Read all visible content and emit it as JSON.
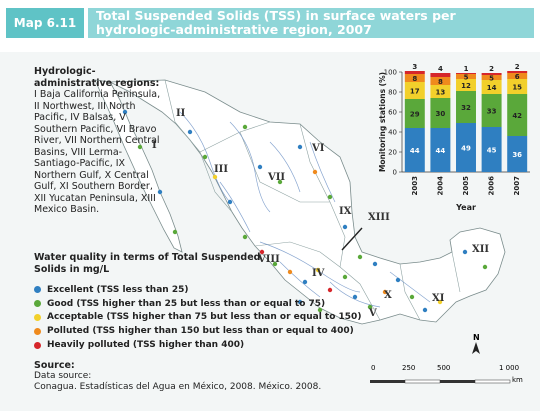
{
  "header": {
    "tag": "Map 6.11",
    "title": "Total Suspended Solids (TSS) in surface waters per hydrologic-administrative region, 2007"
  },
  "regions_legend": {
    "heading": "Hydrologic-administrative regions:",
    "text": " I Baja California Peninsula, II Northwest, III North Pacific, IV Balsas, V Southern Pacific, VI Bravo River, VII Northern Central Basins, VIII Lerma-Santiago-Pacific, IX Northern Gulf, X Central Gulf, XI Southern Border, XII Yucatan Peninsula, XIII Mexico Basin."
  },
  "quality_legend": {
    "title": "Water quality in terms of Total Suspended Solids in mg/L",
    "items": [
      {
        "label": "Excellent (TSS less than 25)",
        "color": "#2f7fc1"
      },
      {
        "label": "Good (TSS higher than 25 but less than or equal to 75)",
        "color": "#5aa83a"
      },
      {
        "label": "Acceptable (TSS higher than 75 but less than or equal to 150)",
        "color": "#f2d02b"
      },
      {
        "label": "Polluted (TSS higher than 150 but less than or equal to 400)",
        "color": "#ef8a1d"
      },
      {
        "label": "Heavily polluted (TSS higher than 400)",
        "color": "#d6262b"
      }
    ]
  },
  "source": {
    "heading": "Source:",
    "line1": "Data source:",
    "line2": "Conagua. Estadísticas del Agua en México, 2008. México. 2008."
  },
  "region_labels": [
    "I",
    "II",
    "III",
    "IV",
    "V",
    "VI",
    "VII",
    "VIII",
    "IX",
    "X",
    "XI",
    "XII",
    "XIII"
  ],
  "scale": {
    "ticks": [
      "0",
      "250",
      "500",
      "1 000"
    ],
    "unit": "km"
  },
  "north": "N",
  "chart_data": {
    "type": "bar",
    "stacked": true,
    "categories": [
      "2003",
      "2004",
      "2005",
      "2006",
      "2007"
    ],
    "xlabel": "Year",
    "ylabel": "Monitoring stations (%)",
    "ylim": [
      0,
      100
    ],
    "yticks": [
      0,
      20,
      40,
      60,
      80,
      100
    ],
    "series": [
      {
        "name": "Excellent",
        "color": "#2f7fc1",
        "values": [
          44,
          44,
          49,
          45,
          36
        ]
      },
      {
        "name": "Good",
        "color": "#5aa83a",
        "values": [
          29,
          30,
          32,
          33,
          42
        ]
      },
      {
        "name": "Acceptable",
        "color": "#f2d02b",
        "values": [
          17,
          13,
          12,
          14,
          15
        ]
      },
      {
        "name": "Polluted",
        "color": "#ef8a1d",
        "values": [
          8,
          8,
          5,
          5,
          6
        ]
      },
      {
        "name": "Heavily polluted",
        "color": "#d6262b",
        "values": [
          3,
          4,
          1,
          2,
          2
        ]
      }
    ]
  }
}
